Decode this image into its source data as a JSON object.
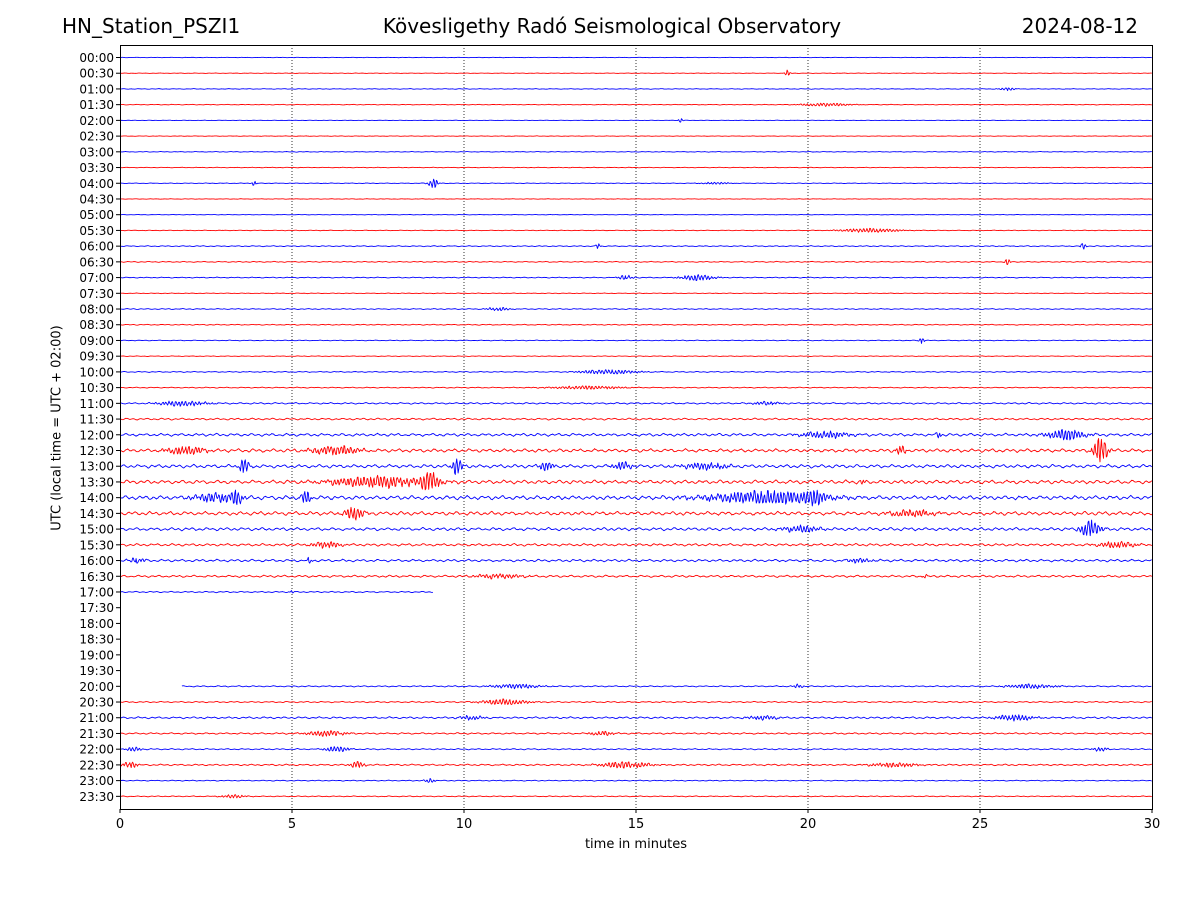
{
  "header": {
    "station": "HN_Station_PSZI1",
    "observatory": "Kövesligethy Radó Seismological Observatory",
    "date": "2024-08-12"
  },
  "chart_data": {
    "type": "line",
    "title": "Kövesligethy Radó Seismological Observatory",
    "xlabel": "time in minutes",
    "ylabel": "UTC (local time = UTC + 02:00)",
    "xlim": [
      0,
      30
    ],
    "x_ticks": [
      "0",
      "5",
      "10",
      "15",
      "20",
      "25",
      "30"
    ],
    "x_tick_values": [
      0,
      5,
      10,
      15,
      20,
      25,
      30
    ],
    "vertical_gridlines_at": [
      5,
      10,
      15,
      20,
      25
    ],
    "row_labels": [
      "00:00",
      "00:30",
      "01:00",
      "01:30",
      "02:00",
      "02:30",
      "03:00",
      "03:30",
      "04:00",
      "04:30",
      "05:00",
      "05:30",
      "06:00",
      "06:30",
      "07:00",
      "07:30",
      "08:00",
      "08:30",
      "09:00",
      "09:30",
      "10:00",
      "10:30",
      "11:00",
      "11:30",
      "12:00",
      "12:30",
      "13:00",
      "13:30",
      "14:00",
      "14:30",
      "15:00",
      "15:30",
      "16:00",
      "16:30",
      "17:00",
      "17:30",
      "18:00",
      "18:30",
      "19:00",
      "19:30",
      "20:00",
      "20:30",
      "21:00",
      "21:30",
      "22:00",
      "22:30",
      "23:00",
      "23:30"
    ],
    "colors": {
      "even_rows": "#0000ff",
      "odd_rows": "#ff0000"
    },
    "trace_extent_minutes": {
      "34": [
        0,
        9.1
      ],
      "35": null,
      "36": null,
      "37": null,
      "38": null,
      "39": null,
      "40": [
        1.8,
        30
      ]
    },
    "row_noise_level": [
      0.15,
      0.15,
      0.2,
      0.2,
      0.15,
      0.15,
      0.2,
      0.2,
      0.2,
      0.15,
      0.15,
      0.2,
      0.3,
      0.3,
      0.3,
      0.2,
      0.3,
      0.3,
      0.25,
      0.2,
      0.3,
      0.3,
      0.5,
      0.6,
      0.9,
      1.1,
      1.1,
      1.2,
      1.3,
      1.2,
      1.0,
      0.8,
      0.8,
      0.7,
      0.4,
      0,
      0,
      0,
      0,
      0,
      0.4,
      0.4,
      0.6,
      0.5,
      0.4,
      0.5,
      0.3,
      0.3
    ],
    "events": [
      {
        "row": 1,
        "t": 19.4,
        "amp": 3,
        "dur": 0.1
      },
      {
        "row": 2,
        "t": 25.8,
        "amp": 1.5,
        "dur": 0.3
      },
      {
        "row": 3,
        "t": 20.5,
        "amp": 1.5,
        "dur": 1.0
      },
      {
        "row": 4,
        "t": 16.3,
        "amp": 2,
        "dur": 0.1
      },
      {
        "row": 8,
        "t": 3.9,
        "amp": 2.5,
        "dur": 0.1
      },
      {
        "row": 8,
        "t": 9.1,
        "amp": 5,
        "dur": 0.2
      },
      {
        "row": 8,
        "t": 17.3,
        "amp": 1,
        "dur": 0.6
      },
      {
        "row": 11,
        "t": 21.8,
        "amp": 2,
        "dur": 1.2
      },
      {
        "row": 12,
        "t": 13.9,
        "amp": 2.5,
        "dur": 0.1
      },
      {
        "row": 12,
        "t": 28.0,
        "amp": 3.5,
        "dur": 0.1
      },
      {
        "row": 13,
        "t": 25.8,
        "amp": 3,
        "dur": 0.1
      },
      {
        "row": 14,
        "t": 14.7,
        "amp": 2.5,
        "dur": 0.3
      },
      {
        "row": 14,
        "t": 16.8,
        "amp": 3,
        "dur": 0.7
      },
      {
        "row": 16,
        "t": 11.0,
        "amp": 1.5,
        "dur": 0.5
      },
      {
        "row": 18,
        "t": 23.3,
        "amp": 3,
        "dur": 0.1
      },
      {
        "row": 20,
        "t": 14.2,
        "amp": 2,
        "dur": 1.2
      },
      {
        "row": 21,
        "t": 13.6,
        "amp": 1.5,
        "dur": 1.5
      },
      {
        "row": 22,
        "t": 1.8,
        "amp": 2.5,
        "dur": 1.0
      },
      {
        "row": 22,
        "t": 18.8,
        "amp": 1.5,
        "dur": 0.6
      },
      {
        "row": 24,
        "t": 20.5,
        "amp": 3,
        "dur": 1.0
      },
      {
        "row": 24,
        "t": 23.8,
        "amp": 3,
        "dur": 0.1
      },
      {
        "row": 24,
        "t": 27.5,
        "amp": 5,
        "dur": 0.8
      },
      {
        "row": 25,
        "t": 1.9,
        "amp": 4,
        "dur": 0.8
      },
      {
        "row": 25,
        "t": 6.3,
        "amp": 4,
        "dur": 1.0
      },
      {
        "row": 25,
        "t": 22.7,
        "amp": 4,
        "dur": 0.2
      },
      {
        "row": 25,
        "t": 28.5,
        "amp": 12,
        "dur": 0.3
      },
      {
        "row": 26,
        "t": 3.6,
        "amp": 7,
        "dur": 0.2
      },
      {
        "row": 26,
        "t": 9.8,
        "amp": 8,
        "dur": 0.2
      },
      {
        "row": 26,
        "t": 12.4,
        "amp": 4,
        "dur": 0.3
      },
      {
        "row": 26,
        "t": 14.6,
        "amp": 4,
        "dur": 0.4
      },
      {
        "row": 26,
        "t": 17.0,
        "amp": 3,
        "dur": 1.0
      },
      {
        "row": 27,
        "t": 7.5,
        "amp": 5,
        "dur": 2.0
      },
      {
        "row": 27,
        "t": 9.0,
        "amp": 8,
        "dur": 0.4
      },
      {
        "row": 27,
        "t": 21.6,
        "amp": 3,
        "dur": 0.1
      },
      {
        "row": 28,
        "t": 2.8,
        "amp": 4,
        "dur": 1.0
      },
      {
        "row": 28,
        "t": 3.4,
        "amp": 6,
        "dur": 0.2
      },
      {
        "row": 28,
        "t": 5.4,
        "amp": 6,
        "dur": 0.2
      },
      {
        "row": 28,
        "t": 18.8,
        "amp": 6,
        "dur": 2.5
      },
      {
        "row": 28,
        "t": 20.2,
        "amp": 5,
        "dur": 0.4
      },
      {
        "row": 29,
        "t": 6.8,
        "amp": 6,
        "dur": 0.4
      },
      {
        "row": 29,
        "t": 23.0,
        "amp": 3,
        "dur": 1.0
      },
      {
        "row": 30,
        "t": 19.8,
        "amp": 3,
        "dur": 0.8
      },
      {
        "row": 30,
        "t": 28.2,
        "amp": 9,
        "dur": 0.4
      },
      {
        "row": 31,
        "t": 6.0,
        "amp": 3,
        "dur": 0.6
      },
      {
        "row": 31,
        "t": 29.0,
        "amp": 3,
        "dur": 0.8
      },
      {
        "row": 32,
        "t": 0.5,
        "amp": 3,
        "dur": 0.3
      },
      {
        "row": 32,
        "t": 5.5,
        "amp": 3,
        "dur": 0.1
      },
      {
        "row": 32,
        "t": 21.5,
        "amp": 2,
        "dur": 0.5
      },
      {
        "row": 33,
        "t": 11.0,
        "amp": 2,
        "dur": 1.0
      },
      {
        "row": 33,
        "t": 23.4,
        "amp": 2,
        "dur": 0.1
      },
      {
        "row": 34,
        "t": 5.0,
        "amp": 1.5,
        "dur": 0.1
      },
      {
        "row": 40,
        "t": 11.5,
        "amp": 2,
        "dur": 1.0
      },
      {
        "row": 40,
        "t": 19.7,
        "amp": 2,
        "dur": 0.2
      },
      {
        "row": 40,
        "t": 26.5,
        "amp": 2,
        "dur": 1.0
      },
      {
        "row": 41,
        "t": 11.2,
        "amp": 2.5,
        "dur": 1.0
      },
      {
        "row": 42,
        "t": 10.2,
        "amp": 2,
        "dur": 0.5
      },
      {
        "row": 42,
        "t": 18.7,
        "amp": 2,
        "dur": 0.6
      },
      {
        "row": 42,
        "t": 26.0,
        "amp": 3,
        "dur": 0.8
      },
      {
        "row": 43,
        "t": 6.0,
        "amp": 2.5,
        "dur": 0.8
      },
      {
        "row": 43,
        "t": 14.0,
        "amp": 2,
        "dur": 0.5
      },
      {
        "row": 44,
        "t": 0.4,
        "amp": 2,
        "dur": 0.3
      },
      {
        "row": 44,
        "t": 6.3,
        "amp": 2.5,
        "dur": 0.5
      },
      {
        "row": 44,
        "t": 28.5,
        "amp": 2,
        "dur": 0.3
      },
      {
        "row": 45,
        "t": 0.3,
        "amp": 3,
        "dur": 0.3
      },
      {
        "row": 45,
        "t": 6.9,
        "amp": 3,
        "dur": 0.3
      },
      {
        "row": 45,
        "t": 14.7,
        "amp": 3,
        "dur": 1.0
      },
      {
        "row": 45,
        "t": 22.5,
        "amp": 2,
        "dur": 1.0
      },
      {
        "row": 46,
        "t": 9.0,
        "amp": 2,
        "dur": 0.2
      },
      {
        "row": 47,
        "t": 3.3,
        "amp": 1.5,
        "dur": 0.5
      }
    ]
  }
}
